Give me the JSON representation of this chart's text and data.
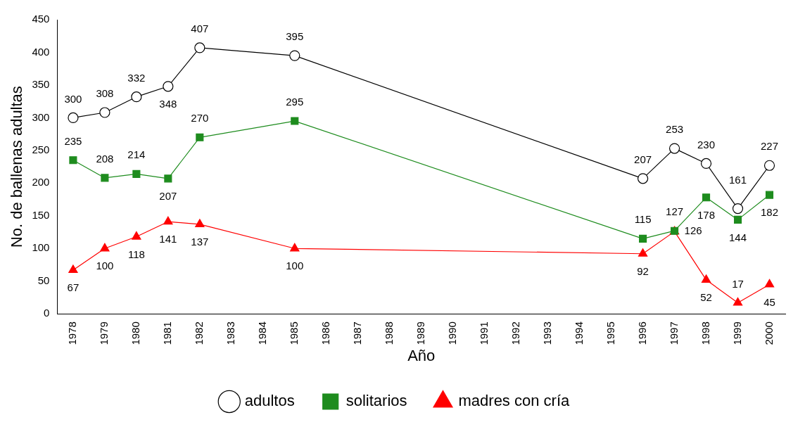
{
  "chart_data": {
    "type": "line",
    "xlabel": "Año",
    "ylabel": "No. de ballenas adultas",
    "categories": [
      "1978",
      "1979",
      "1980",
      "1981",
      "1982",
      "1983",
      "1984",
      "1985",
      "1986",
      "1987",
      "1988",
      "1989",
      "1990",
      "1991",
      "1992",
      "1993",
      "1994",
      "1995",
      "1996",
      "1997",
      "1998",
      "1999",
      "2000"
    ],
    "series": [
      {
        "name": "adultos",
        "color": "#000000",
        "marker": "circle",
        "values": [
          300,
          308,
          332,
          348,
          407,
          null,
          null,
          395,
          null,
          null,
          null,
          null,
          null,
          null,
          null,
          null,
          null,
          null,
          207,
          253,
          230,
          161,
          227
        ]
      },
      {
        "name": "solitarios",
        "color": "#1e8c1e",
        "marker": "square",
        "values": [
          235,
          208,
          214,
          207,
          270,
          null,
          null,
          295,
          null,
          null,
          null,
          null,
          null,
          null,
          null,
          null,
          null,
          null,
          115,
          127,
          178,
          144,
          182
        ]
      },
      {
        "name": "madres con cría",
        "color": "#ff0000",
        "marker": "triangle",
        "values": [
          67,
          100,
          118,
          141,
          137,
          null,
          null,
          100,
          null,
          null,
          null,
          null,
          null,
          null,
          null,
          null,
          null,
          null,
          92,
          126,
          52,
          17,
          45
        ]
      }
    ],
    "ylim": [
      0,
      450
    ],
    "yticks": [
      0,
      50,
      100,
      150,
      200,
      250,
      300,
      350,
      400,
      450
    ],
    "grid": false,
    "legend": "bottom",
    "data_labels": true,
    "line_style": "solid"
  }
}
